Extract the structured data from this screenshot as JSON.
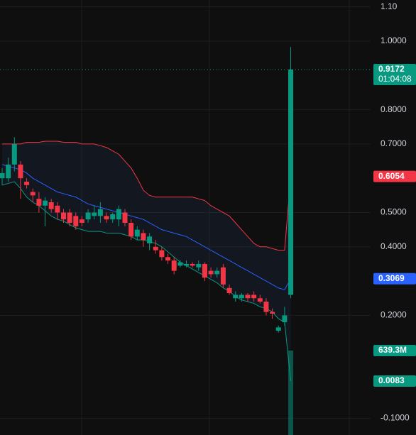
{
  "chart_data": {
    "type": "candlestick",
    "ylim": [
      -0.149,
      1.12
    ],
    "yticks": [
      {
        "value": 1.1,
        "label": "1.10"
      },
      {
        "value": 1.0,
        "label": "1.0000"
      },
      {
        "value": 0.8,
        "label": "0.8000"
      },
      {
        "value": 0.7,
        "label": "0.7000"
      },
      {
        "value": 0.5,
        "label": "0.5000"
      },
      {
        "value": 0.4,
        "label": "0.4000"
      },
      {
        "value": 0.2,
        "label": "0.2000"
      },
      {
        "value": -0.1,
        "label": "-0.1000"
      }
    ],
    "up_color": "#089981",
    "down_color": "#f23645",
    "candles": [
      {
        "open": 0.6,
        "high": 0.63,
        "low": 0.58,
        "close": 0.615
      },
      {
        "open": 0.6,
        "high": 0.66,
        "low": 0.59,
        "close": 0.64
      },
      {
        "open": 0.64,
        "high": 0.72,
        "low": 0.62,
        "close": 0.7
      },
      {
        "open": 0.64,
        "high": 0.65,
        "low": 0.54,
        "close": 0.6
      },
      {
        "open": 0.59,
        "high": 0.6,
        "low": 0.57,
        "close": 0.58
      },
      {
        "open": 0.56,
        "high": 0.57,
        "low": 0.53,
        "close": 0.55
      },
      {
        "open": 0.54,
        "high": 0.56,
        "low": 0.5,
        "close": 0.52
      },
      {
        "open": 0.52,
        "high": 0.545,
        "low": 0.46,
        "close": 0.535
      },
      {
        "open": 0.53,
        "high": 0.54,
        "low": 0.5,
        "close": 0.51
      },
      {
        "open": 0.52,
        "high": 0.53,
        "low": 0.48,
        "close": 0.5
      },
      {
        "open": 0.5,
        "high": 0.51,
        "low": 0.47,
        "close": 0.48
      },
      {
        "open": 0.5,
        "high": 0.51,
        "low": 0.46,
        "close": 0.47
      },
      {
        "open": 0.49,
        "high": 0.5,
        "low": 0.45,
        "close": 0.46
      },
      {
        "open": 0.48,
        "high": 0.49,
        "low": 0.46,
        "close": 0.47
      },
      {
        "open": 0.48,
        "high": 0.51,
        "low": 0.47,
        "close": 0.5
      },
      {
        "open": 0.49,
        "high": 0.52,
        "low": 0.48,
        "close": 0.5
      },
      {
        "open": 0.49,
        "high": 0.53,
        "low": 0.47,
        "close": 0.51
      },
      {
        "open": 0.49,
        "high": 0.5,
        "low": 0.47,
        "close": 0.48
      },
      {
        "open": 0.48,
        "high": 0.5,
        "low": 0.47,
        "close": 0.495
      },
      {
        "open": 0.48,
        "high": 0.52,
        "low": 0.46,
        "close": 0.51
      },
      {
        "open": 0.5,
        "high": 0.51,
        "low": 0.46,
        "close": 0.47
      },
      {
        "open": 0.47,
        "high": 0.48,
        "low": 0.42,
        "close": 0.43
      },
      {
        "open": 0.43,
        "high": 0.46,
        "low": 0.42,
        "close": 0.45
      },
      {
        "open": 0.44,
        "high": 0.45,
        "low": 0.4,
        "close": 0.42
      },
      {
        "open": 0.41,
        "high": 0.44,
        "low": 0.39,
        "close": 0.43
      },
      {
        "open": 0.4,
        "high": 0.42,
        "low": 0.38,
        "close": 0.39
      },
      {
        "open": 0.39,
        "high": 0.4,
        "low": 0.36,
        "close": 0.37
      },
      {
        "open": 0.37,
        "high": 0.38,
        "low": 0.35,
        "close": 0.36
      },
      {
        "open": 0.36,
        "high": 0.37,
        "low": 0.32,
        "close": 0.33
      },
      {
        "open": 0.345,
        "high": 0.36,
        "low": 0.34,
        "close": 0.355
      },
      {
        "open": 0.345,
        "high": 0.36,
        "low": 0.34,
        "close": 0.35
      },
      {
        "open": 0.35,
        "high": 0.355,
        "low": 0.34,
        "close": 0.345
      },
      {
        "open": 0.34,
        "high": 0.36,
        "low": 0.33,
        "close": 0.35
      },
      {
        "open": 0.35,
        "high": 0.355,
        "low": 0.3,
        "close": 0.31
      },
      {
        "open": 0.33,
        "high": 0.34,
        "low": 0.31,
        "close": 0.32
      },
      {
        "open": 0.32,
        "high": 0.34,
        "low": 0.31,
        "close": 0.33
      },
      {
        "open": 0.34,
        "high": 0.35,
        "low": 0.28,
        "close": 0.29
      },
      {
        "open": 0.28,
        "high": 0.29,
        "low": 0.26,
        "close": 0.265
      },
      {
        "open": 0.25,
        "high": 0.27,
        "low": 0.24,
        "close": 0.26
      },
      {
        "open": 0.25,
        "high": 0.265,
        "low": 0.24,
        "close": 0.26
      },
      {
        "open": 0.26,
        "high": 0.265,
        "low": 0.24,
        "close": 0.25
      },
      {
        "open": 0.26,
        "high": 0.27,
        "low": 0.24,
        "close": 0.25
      },
      {
        "open": 0.25,
        "high": 0.26,
        "low": 0.235,
        "close": 0.24
      },
      {
        "open": 0.24,
        "high": 0.25,
        "low": 0.2,
        "close": 0.21
      },
      {
        "open": 0.21,
        "high": 0.22,
        "low": 0.19,
        "close": 0.205
      },
      {
        "open": 0.155,
        "high": 0.17,
        "low": 0.15,
        "close": 0.165
      },
      {
        "open": 0.18,
        "high": 0.225,
        "low": 0.17,
        "close": 0.2
      },
      {
        "open": 0.26,
        "high": 0.983,
        "low": 0.25,
        "close": 0.9172
      }
    ],
    "bands": [
      {
        "color": "#f23645",
        "values": [
          0.7,
          0.7,
          0.7,
          0.7,
          0.705,
          0.705,
          0.705,
          0.708,
          0.708,
          0.708,
          0.705,
          0.705,
          0.705,
          0.7,
          0.7,
          0.7,
          0.695,
          0.69,
          0.68,
          0.67,
          0.65,
          0.63,
          0.6,
          0.565,
          0.55,
          0.545,
          0.545,
          0.545,
          0.545,
          0.545,
          0.545,
          0.545,
          0.54,
          0.535,
          0.52,
          0.51,
          0.5,
          0.49,
          0.47,
          0.45,
          0.43,
          0.41,
          0.4,
          0.4,
          0.395,
          0.39,
          0.39,
          0.6054
        ],
        "last_label": "0.6054"
      },
      {
        "color": "#2962ff",
        "values": [
          0.64,
          0.635,
          0.63,
          0.625,
          0.615,
          0.6,
          0.59,
          0.58,
          0.57,
          0.56,
          0.555,
          0.55,
          0.545,
          0.535,
          0.525,
          0.52,
          0.515,
          0.51,
          0.505,
          0.5,
          0.495,
          0.49,
          0.485,
          0.48,
          0.47,
          0.46,
          0.45,
          0.445,
          0.44,
          0.435,
          0.43,
          0.42,
          0.41,
          0.4,
          0.39,
          0.38,
          0.37,
          0.36,
          0.35,
          0.34,
          0.33,
          0.32,
          0.31,
          0.3,
          0.29,
          0.28,
          0.275,
          0.3069
        ],
        "last_label": "0.3069"
      },
      {
        "color": "#089981",
        "values": [
          0.58,
          0.585,
          0.59,
          0.57,
          0.545,
          0.53,
          0.52,
          0.505,
          0.49,
          0.48,
          0.475,
          0.465,
          0.455,
          0.45,
          0.445,
          0.445,
          0.445,
          0.44,
          0.44,
          0.44,
          0.435,
          0.43,
          0.42,
          0.42,
          0.415,
          0.41,
          0.4,
          0.385,
          0.37,
          0.355,
          0.345,
          0.335,
          0.325,
          0.315,
          0.305,
          0.295,
          0.28,
          0.27,
          0.255,
          0.245,
          0.24,
          0.235,
          0.225,
          0.22,
          0.21,
          0.19,
          0.18,
          0.0083
        ],
        "last_label": "0.0083"
      }
    ],
    "last_price_label": "0.9172",
    "countdown": "01:04:08",
    "volume": {
      "value": 639300000,
      "label": "639.3M",
      "color": "#089981"
    }
  }
}
